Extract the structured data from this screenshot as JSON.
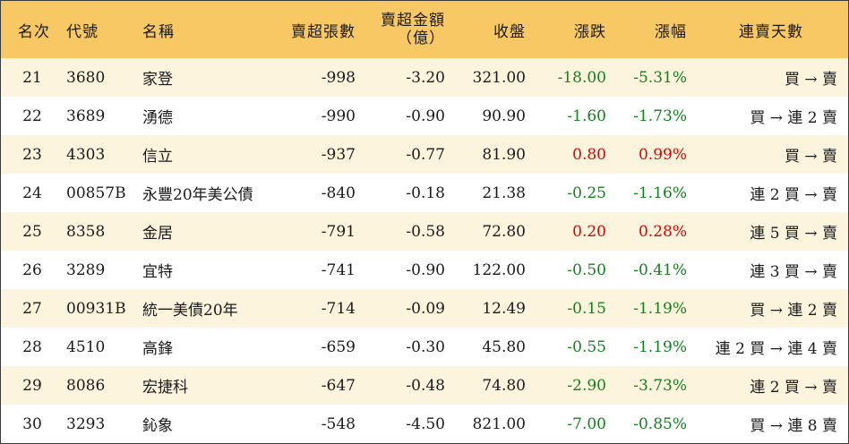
{
  "header": {
    "rank": "名次",
    "code": "代號",
    "name": "名稱",
    "sell_lots": "賣超張數",
    "sell_amount_line1": "賣超金額",
    "sell_amount_line2": "（億）",
    "close": "收盤",
    "change": "漲跌",
    "change_pct": "漲幅",
    "consecutive_days": "連賣天數"
  },
  "colors": {
    "header_bg": "#f7c863",
    "odd_row_bg": "#fdf4dd",
    "down": "#13801e",
    "up": "#e00000"
  },
  "rows": [
    {
      "rank": "21",
      "code": "3680",
      "name": "家登",
      "lots": "-998",
      "amount": "-3.20",
      "close": "321.00",
      "change": "-18.00",
      "pct": "-5.31%",
      "dir": "down",
      "days": "買 → 賣"
    },
    {
      "rank": "22",
      "code": "3689",
      "name": "湧德",
      "lots": "-990",
      "amount": "-0.90",
      "close": "90.90",
      "change": "-1.60",
      "pct": "-1.73%",
      "dir": "down",
      "days": "買 → 連 2 賣"
    },
    {
      "rank": "23",
      "code": "4303",
      "name": "信立",
      "lots": "-937",
      "amount": "-0.77",
      "close": "81.90",
      "change": "0.80",
      "pct": "0.99%",
      "dir": "up",
      "days": "買 → 賣"
    },
    {
      "rank": "24",
      "code": "00857B",
      "name": "永豐20年美公債",
      "lots": "-840",
      "amount": "-0.18",
      "close": "21.38",
      "change": "-0.25",
      "pct": "-1.16%",
      "dir": "down",
      "days": "連 2 買 → 賣"
    },
    {
      "rank": "25",
      "code": "8358",
      "name": "金居",
      "lots": "-791",
      "amount": "-0.58",
      "close": "72.80",
      "change": "0.20",
      "pct": "0.28%",
      "dir": "up",
      "days": "連 5 買 → 賣"
    },
    {
      "rank": "26",
      "code": "3289",
      "name": "宜特",
      "lots": "-741",
      "amount": "-0.90",
      "close": "122.00",
      "change": "-0.50",
      "pct": "-0.41%",
      "dir": "down",
      "days": "連 3 買 → 賣"
    },
    {
      "rank": "27",
      "code": "00931B",
      "name": "統一美債20年",
      "lots": "-714",
      "amount": "-0.09",
      "close": "12.49",
      "change": "-0.15",
      "pct": "-1.19%",
      "dir": "down",
      "days": "買 → 連 2 賣"
    },
    {
      "rank": "28",
      "code": "4510",
      "name": "高鋒",
      "lots": "-659",
      "amount": "-0.30",
      "close": "45.80",
      "change": "-0.55",
      "pct": "-1.19%",
      "dir": "down",
      "days": "連 2 買 → 連 4 賣"
    },
    {
      "rank": "29",
      "code": "8086",
      "name": "宏捷科",
      "lots": "-647",
      "amount": "-0.48",
      "close": "74.80",
      "change": "-2.90",
      "pct": "-3.73%",
      "dir": "down",
      "days": "連 2 買 → 賣"
    },
    {
      "rank": "30",
      "code": "3293",
      "name": "鈊象",
      "lots": "-548",
      "amount": "-4.50",
      "close": "821.00",
      "change": "-7.00",
      "pct": "-0.85%",
      "dir": "down",
      "days": "買 → 連 8 賣"
    }
  ]
}
